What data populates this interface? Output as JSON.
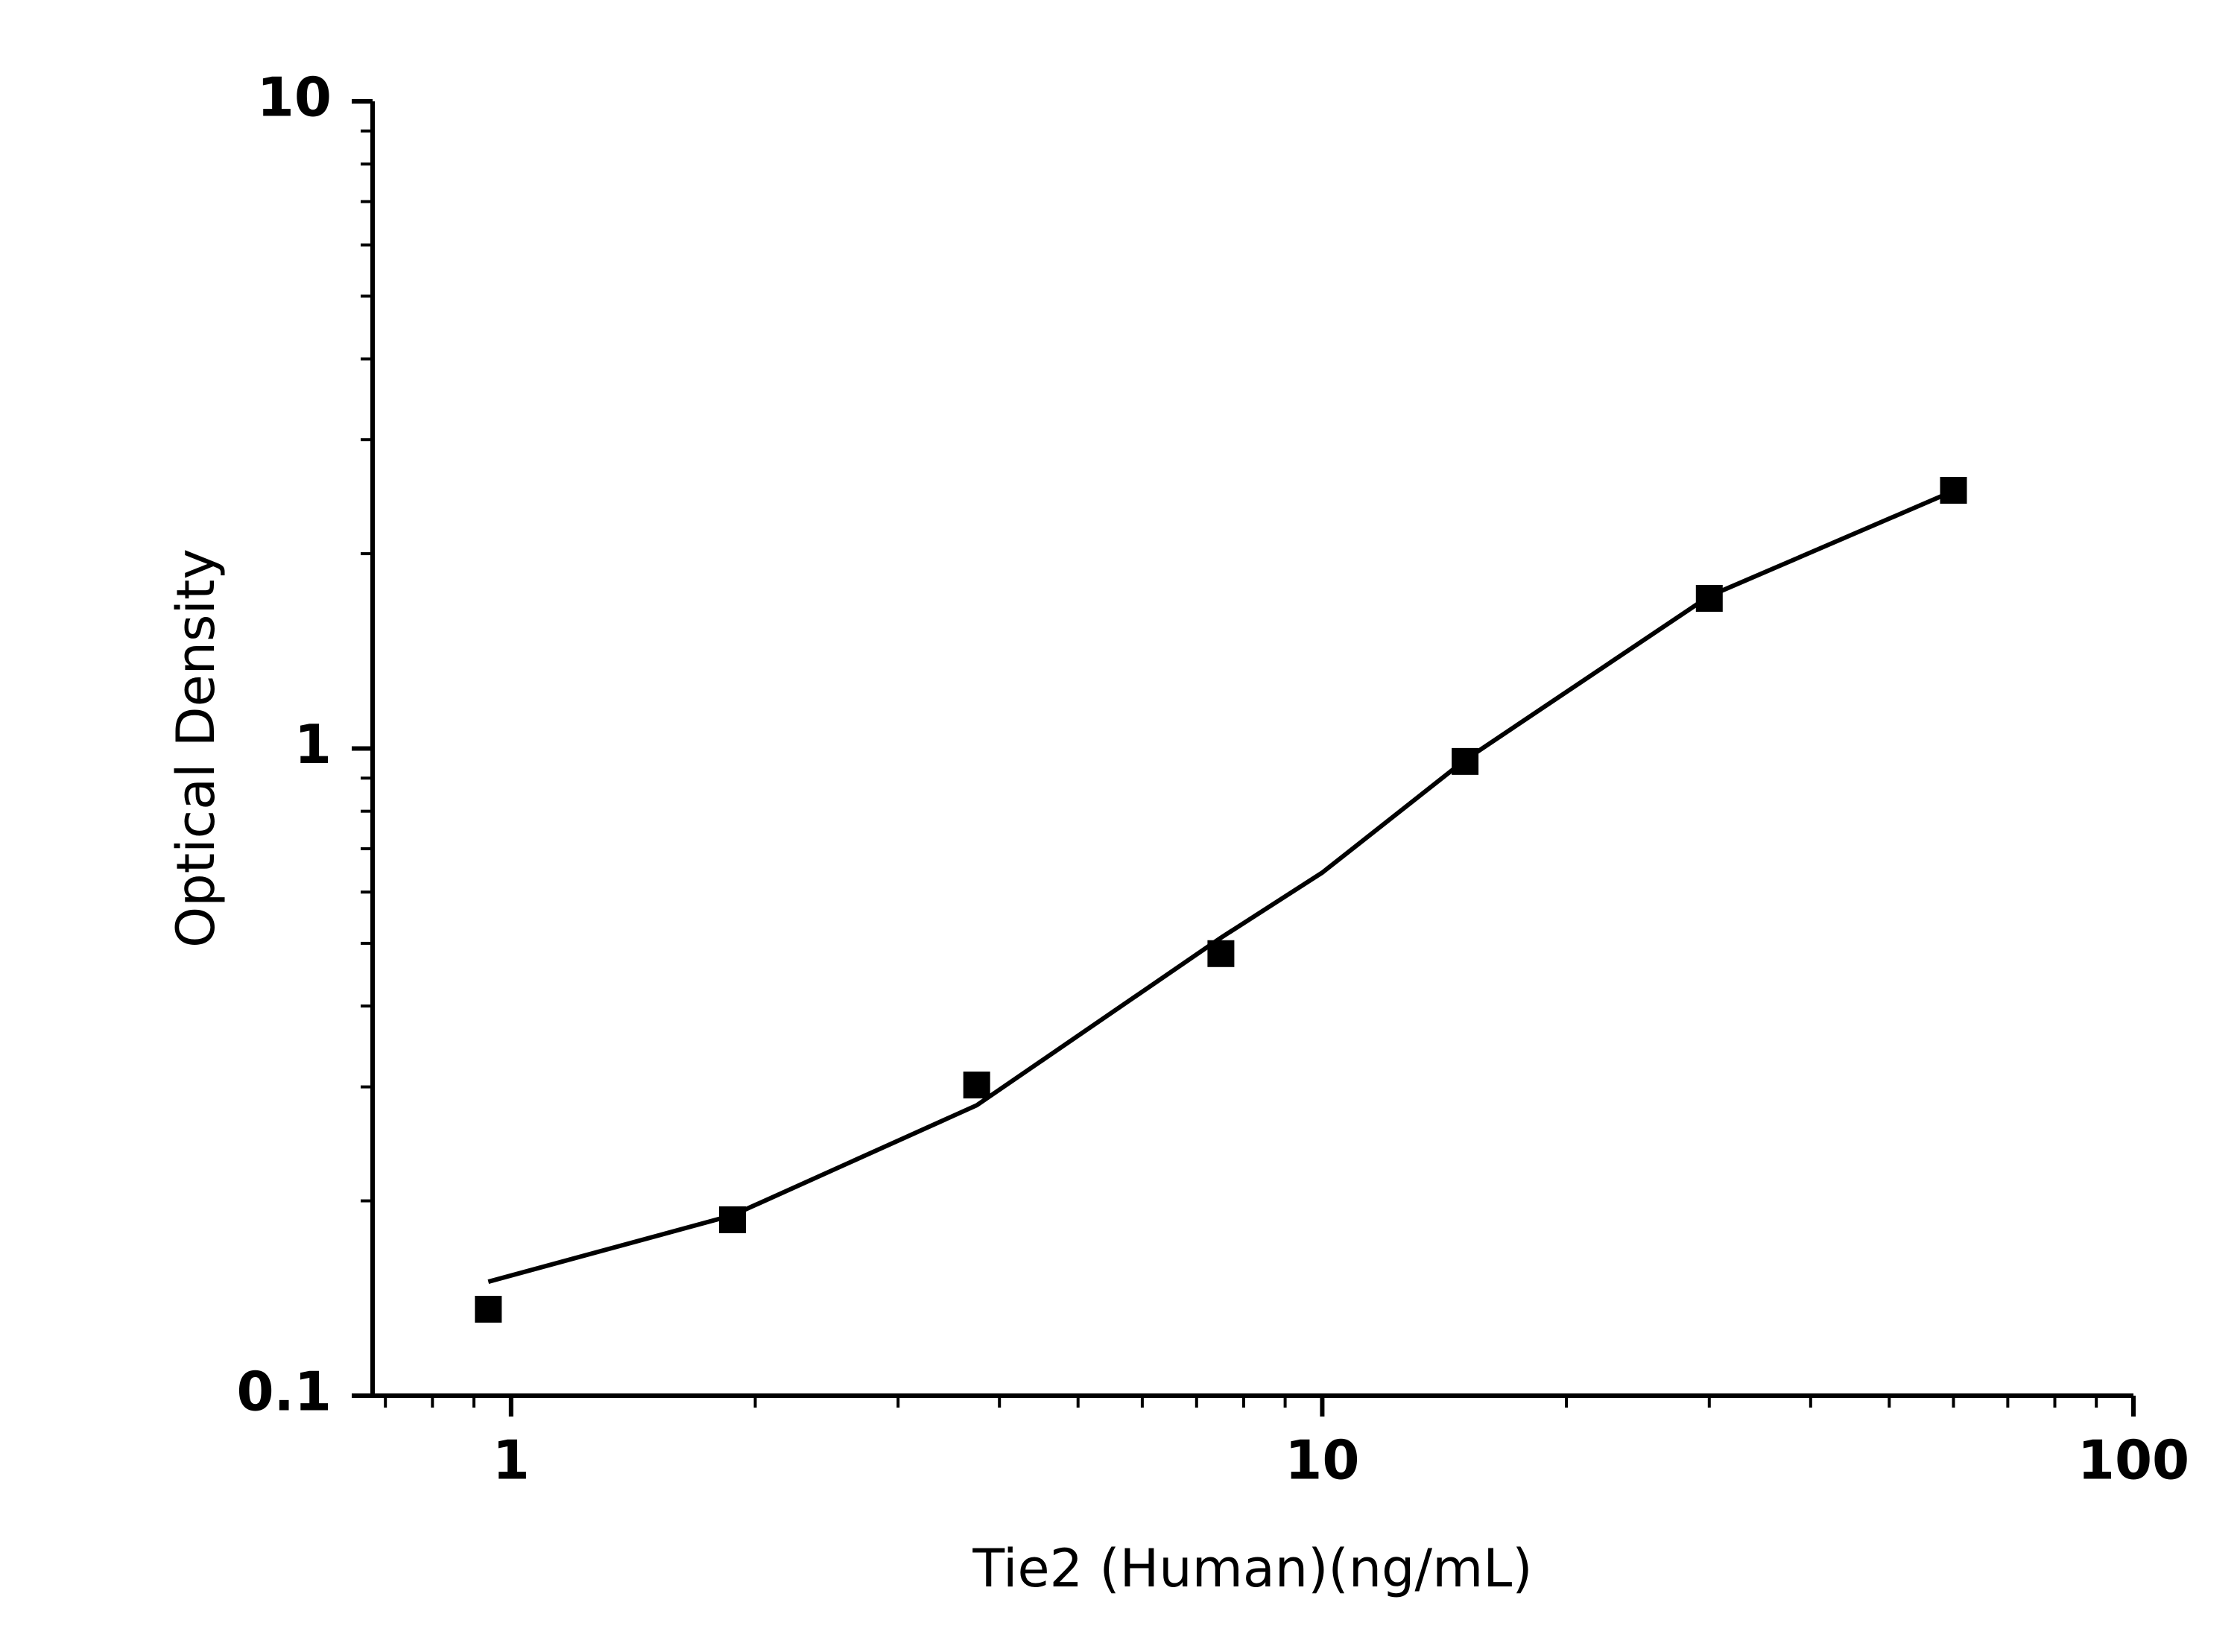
{
  "chart_data": {
    "type": "scatter",
    "xlabel": "Tie2 (Human)(ng/mL)",
    "ylabel": "Optical Density",
    "xscale": "log",
    "yscale": "log",
    "xlim": [
      0.675,
      100
    ],
    "ylim": [
      0.1,
      10
    ],
    "xticks": [
      1,
      10,
      100
    ],
    "yticks": [
      0.1,
      1,
      10
    ],
    "series": [
      {
        "type": "scatter",
        "marker": "square",
        "color": "#000000",
        "x": [
          0.9375,
          1.875,
          3.75,
          7.5,
          15,
          30,
          60
        ],
        "values": [
          0.136,
          0.187,
          0.302,
          0.482,
          0.955,
          1.706,
          2.506
        ]
      },
      {
        "type": "line",
        "color": "#000000",
        "x": [
          0.9375,
          1.875,
          3.75,
          7.5,
          10,
          15,
          30,
          60
        ],
        "values": [
          0.15,
          0.19,
          0.281,
          0.51,
          0.643,
          0.96,
          1.72,
          2.5
        ]
      }
    ]
  }
}
